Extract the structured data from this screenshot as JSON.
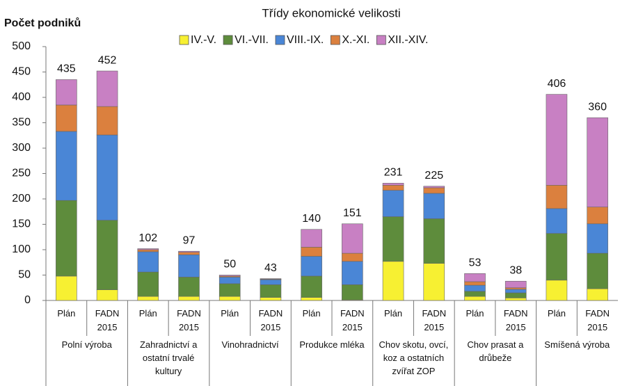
{
  "chart_data": {
    "type": "stacked_bar",
    "title": "Třídy ekonomické velikosti",
    "y_label": "Počet podniků",
    "categories": [
      "Plán",
      "FADN 2015",
      "Plán",
      "FADN 2015",
      "Plán",
      "FADN 2015",
      "Plán",
      "FADN 2015",
      "Plán",
      "FADN 2015",
      "Plán",
      "FADN 2015",
      "Plán",
      "FADN 2015"
    ],
    "groups": [
      "Polní výroba",
      "Zahradnictví a ostatní trvalé kultury",
      "Vinohradnictví",
      "Produkce mléka",
      "Chov skotu, ovcí, koz a ostatních zvířat ZOP",
      "Chov prasat a drůbeže",
      "Smíšená výroba"
    ],
    "series": [
      {
        "name": "IV.-V.",
        "color": "#f7f032",
        "values": [
          48,
          21,
          8,
          8,
          8,
          6,
          6,
          1,
          77,
          73,
          8,
          5,
          40,
          23
        ]
      },
      {
        "name": "VI.-VII.",
        "color": "#5e8c3c",
        "values": [
          149,
          137,
          48,
          38,
          25,
          25,
          42,
          30,
          88,
          88,
          10,
          10,
          92,
          70
        ]
      },
      {
        "name": "VIII.-IX.",
        "color": "#4a86d6",
        "values": [
          136,
          168,
          40,
          44,
          13,
          10,
          39,
          46,
          52,
          50,
          12,
          7,
          49,
          58
        ]
      },
      {
        "name": "X.-XI.",
        "color": "#db803e",
        "values": [
          52,
          56,
          4,
          5,
          2,
          1,
          18,
          16,
          10,
          11,
          7,
          3,
          46,
          33
        ]
      },
      {
        "name": "XII.-XIV.",
        "color": "#c880c3",
        "values": [
          50,
          70,
          2,
          2,
          2,
          1,
          35,
          58,
          4,
          3,
          16,
          13,
          179,
          176
        ]
      }
    ],
    "totals": [
      435,
      452,
      102,
      97,
      50,
      43,
      140,
      151,
      231,
      225,
      53,
      38,
      406,
      360
    ],
    "ylim": [
      0,
      500
    ],
    "yticks": [
      0,
      50,
      100,
      150,
      200,
      250,
      300,
      350,
      400,
      450,
      500
    ],
    "grid": false
  }
}
